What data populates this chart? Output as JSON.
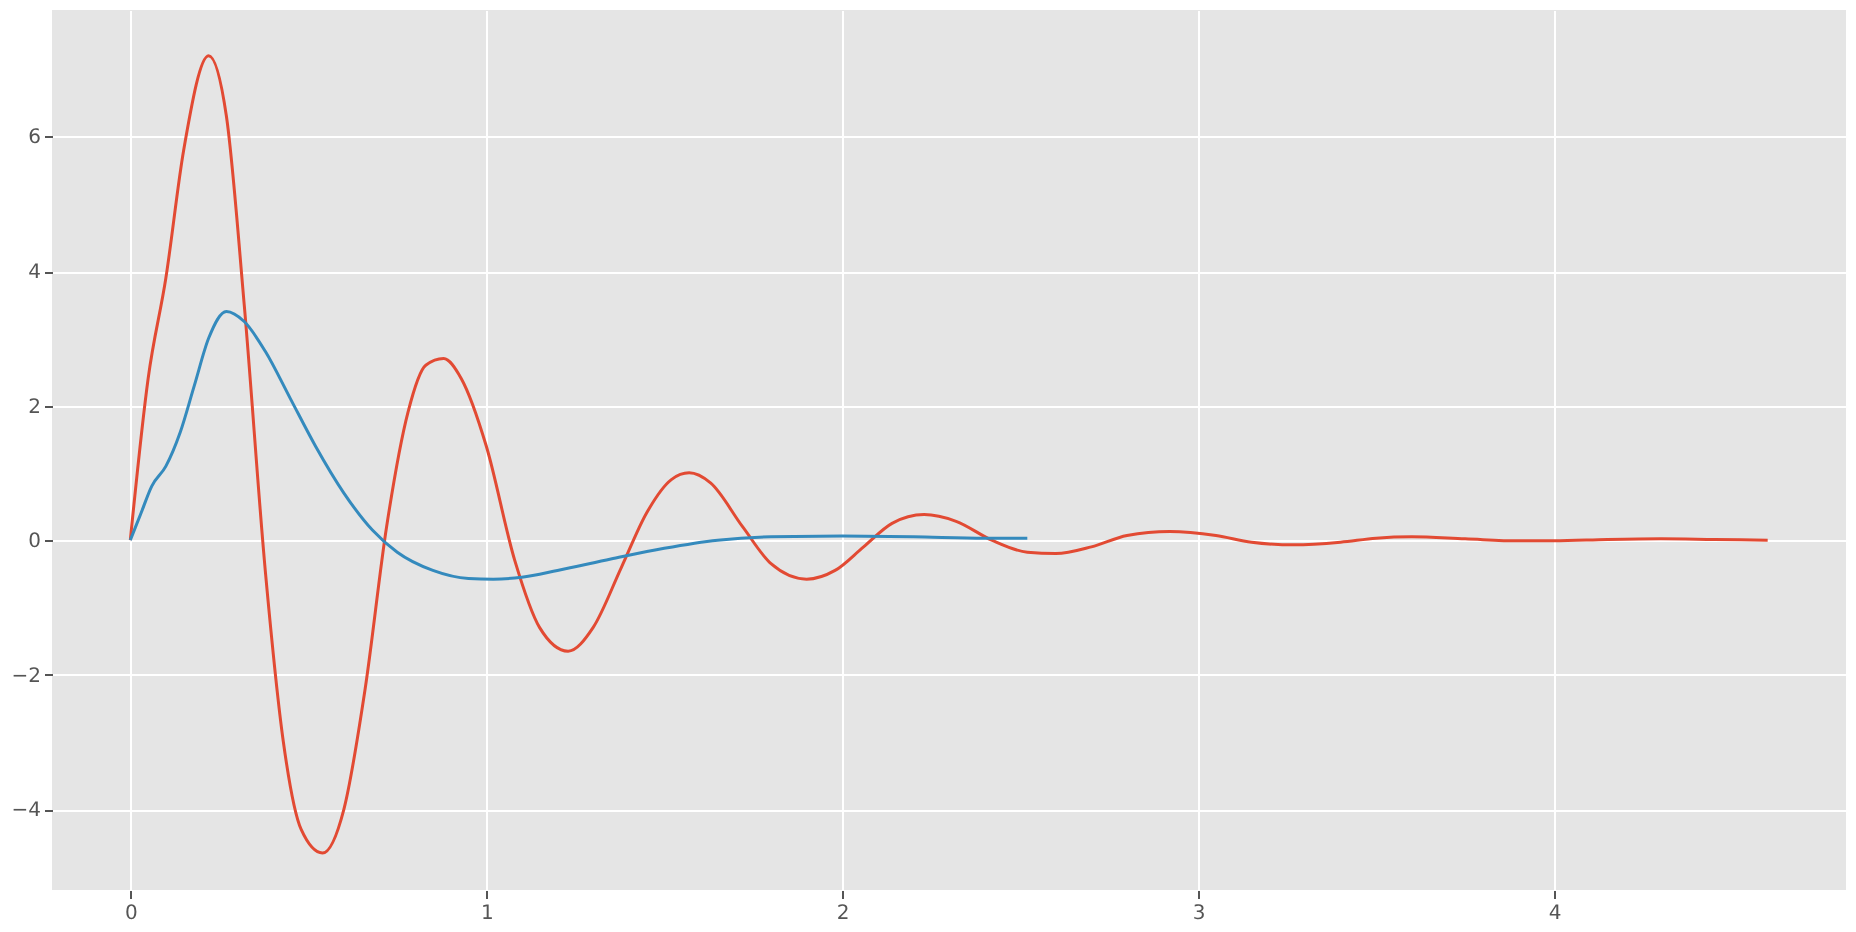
{
  "chart_data": {
    "type": "line",
    "xlim": [
      -0.22,
      4.82
    ],
    "ylim": [
      -5.2,
      7.88
    ],
    "xticks": [
      0,
      1,
      2,
      3,
      4
    ],
    "yticks": [
      -4,
      -2,
      0,
      2,
      4,
      6
    ],
    "grid": true,
    "legend": false,
    "marker": "none",
    "line_style": "solid",
    "series": [
      {
        "color": "#e24a33",
        "x": [
          0,
          0.05,
          0.1,
          0.15,
          0.22,
          0.27,
          0.32,
          0.38,
          0.43,
          0.48,
          0.54,
          0.6,
          0.66,
          0.72,
          0.78,
          0.83,
          0.88,
          0.93,
          1.0,
          1.08,
          1.15,
          1.23,
          1.3,
          1.38,
          1.45,
          1.52,
          1.57,
          1.63,
          1.72,
          1.8,
          1.9,
          1.98,
          2.06,
          2.14,
          2.23,
          2.32,
          2.42,
          2.52,
          2.6,
          2.7,
          2.8,
          2.92,
          3.05,
          3.15,
          3.27,
          3.4,
          3.5,
          3.6,
          3.75,
          3.9,
          4.0,
          4.15,
          4.3,
          4.45,
          4.6
        ],
        "values": [
          0,
          2.4,
          3.9,
          5.8,
          7.2,
          6.3,
          3.5,
          -0.5,
          -3,
          -4.3,
          -4.65,
          -4.0,
          -2.2,
          0.2,
          1.9,
          2.6,
          2.7,
          2.4,
          1.4,
          -0.3,
          -1.3,
          -1.65,
          -1.3,
          -0.4,
          0.4,
          0.9,
          1.0,
          0.85,
          0.2,
          -0.35,
          -0.58,
          -0.45,
          -0.1,
          0.25,
          0.38,
          0.28,
          0.0,
          -0.18,
          -0.2,
          -0.1,
          0.07,
          0.13,
          0.07,
          -0.03,
          -0.07,
          -0.03,
          0.03,
          0.05,
          0.02,
          -0.01,
          -0.01,
          0.01,
          0.02,
          0.01,
          0.0
        ]
      },
      {
        "color": "#348abd",
        "x": [
          0,
          0.03,
          0.06,
          0.1,
          0.14,
          0.18,
          0.22,
          0.27,
          0.32,
          0.38,
          0.45,
          0.52,
          0.6,
          0.68,
          0.75,
          0.85,
          0.95,
          1.02,
          1.1,
          1.2,
          1.35,
          1.5,
          1.65,
          1.8,
          2.0,
          2.2,
          2.4,
          2.52
        ],
        "values": [
          0,
          0.4,
          0.8,
          1.1,
          1.6,
          2.3,
          3.0,
          3.4,
          3.25,
          2.8,
          2.1,
          1.4,
          0.7,
          0.15,
          -0.18,
          -0.45,
          -0.57,
          -0.58,
          -0.55,
          -0.45,
          -0.28,
          -0.12,
          0.0,
          0.05,
          0.06,
          0.05,
          0.03,
          0.03
        ]
      }
    ]
  }
}
